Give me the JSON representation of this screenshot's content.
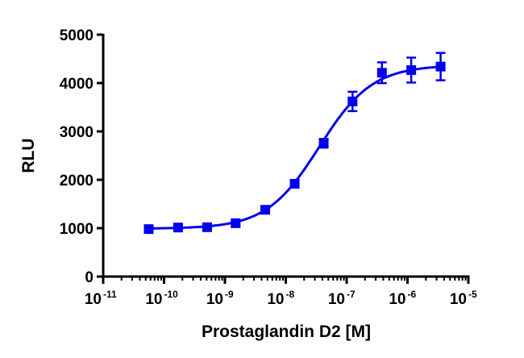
{
  "chart_data": {
    "type": "scatter",
    "title": "",
    "xlabel": "Prostaglandin D2 [M]",
    "ylabel": "RLU",
    "x_scale": "log",
    "xlim": [
      1e-11,
      1e-05
    ],
    "ylim": [
      0,
      5000
    ],
    "x_ticks": [
      {
        "base": "10",
        "exp": "-11"
      },
      {
        "base": "10",
        "exp": "-10"
      },
      {
        "base": "10",
        "exp": "-9"
      },
      {
        "base": "10",
        "exp": "-8"
      },
      {
        "base": "10",
        "exp": "-7"
      },
      {
        "base": "10",
        "exp": "-6"
      },
      {
        "base": "10",
        "exp": "-5"
      }
    ],
    "y_ticks": [
      "0",
      "1000",
      "2000",
      "3000",
      "4000",
      "5000"
    ],
    "grid": false,
    "color": "#0000ee",
    "marker": "square",
    "points": [
      {
        "x": 5.6e-11,
        "y": 981,
        "err": 30
      },
      {
        "x": 1.7e-10,
        "y": 1014,
        "err": 30
      },
      {
        "x": 5.1e-10,
        "y": 1020,
        "err": 30
      },
      {
        "x": 1.5e-09,
        "y": 1103,
        "err": 30
      },
      {
        "x": 4.6e-09,
        "y": 1380,
        "err": 30
      },
      {
        "x": 1.4e-08,
        "y": 1918,
        "err": 40
      },
      {
        "x": 4.2e-08,
        "y": 2755,
        "err": 90
      },
      {
        "x": 1.25e-07,
        "y": 3620,
        "err": 200
      },
      {
        "x": 3.8e-07,
        "y": 4213,
        "err": 215
      },
      {
        "x": 1.15e-06,
        "y": 4268,
        "err": 258
      },
      {
        "x": 3.5e-06,
        "y": 4340,
        "err": 283
      }
    ],
    "fit": {
      "model": "four-parameter logistic",
      "bottom": 990,
      "top": 4370,
      "logEC50": -7.45,
      "hill": 1.0
    }
  }
}
